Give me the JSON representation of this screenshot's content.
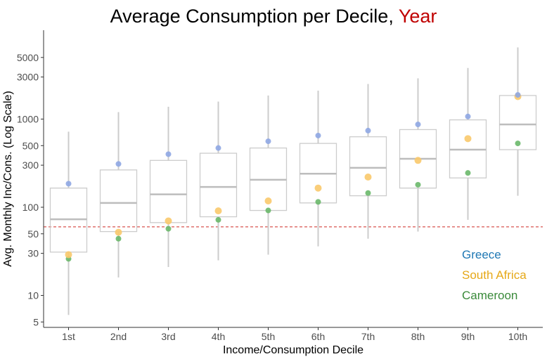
{
  "chart_data": {
    "type": "box",
    "title": "Average Consumption per Decile, ",
    "title_highlight": "Year",
    "xlabel": "Income/Consumption Decile",
    "ylabel": "Avg. Monthly Inc/Cons. (Log Scale)",
    "y_scale": "log",
    "ylim": [
      4,
      8000
    ],
    "y_ticks": [
      5,
      10,
      30,
      50,
      100,
      300,
      500,
      1000,
      3000,
      5000
    ],
    "reference_line": 60,
    "categories": [
      "1st",
      "2nd",
      "3rd",
      "4th",
      "5th",
      "6th",
      "7th",
      "8th",
      "9th",
      "10th"
    ],
    "boxes": [
      {
        "min": 6,
        "q1": 31,
        "median": 73,
        "q3": 165,
        "max": 720
      },
      {
        "min": 16,
        "q1": 53,
        "median": 112,
        "q3": 265,
        "max": 1200
      },
      {
        "min": 21,
        "q1": 67,
        "median": 140,
        "q3": 340,
        "max": 1380
      },
      {
        "min": 25,
        "q1": 78,
        "median": 170,
        "q3": 410,
        "max": 1580
      },
      {
        "min": 29,
        "q1": 92,
        "median": 205,
        "q3": 470,
        "max": 1850
      },
      {
        "min": 36,
        "q1": 112,
        "median": 240,
        "q3": 530,
        "max": 2100
      },
      {
        "min": 44,
        "q1": 135,
        "median": 280,
        "q3": 630,
        "max": 2500
      },
      {
        "min": 53,
        "q1": 165,
        "median": 355,
        "q3": 760,
        "max": 2900
      },
      {
        "min": 72,
        "q1": 215,
        "median": 450,
        "q3": 980,
        "max": 3800
      },
      {
        "min": 135,
        "q1": 450,
        "median": 870,
        "q3": 1850,
        "max": 6500
      }
    ],
    "series": [
      {
        "name": "Greece",
        "color": "#8fa7e3",
        "values": [
          185,
          310,
          400,
          470,
          560,
          650,
          740,
          870,
          1070,
          1880
        ]
      },
      {
        "name": "South Africa",
        "color": "#f9c96b",
        "values": [
          29,
          52,
          70,
          91,
          118,
          165,
          220,
          340,
          600,
          1800
        ]
      },
      {
        "name": "Cameroon",
        "color": "#6ab86a",
        "values": [
          26,
          44,
          57,
          72,
          92,
          115,
          145,
          180,
          245,
          530
        ]
      }
    ],
    "legend_position": "bottom-right",
    "legend_text_colors": [
      "#1f78b4",
      "#e6a817",
      "#3a8a3a"
    ],
    "box_color": "#cccccc",
    "reference_line_color": "#d9534f"
  }
}
